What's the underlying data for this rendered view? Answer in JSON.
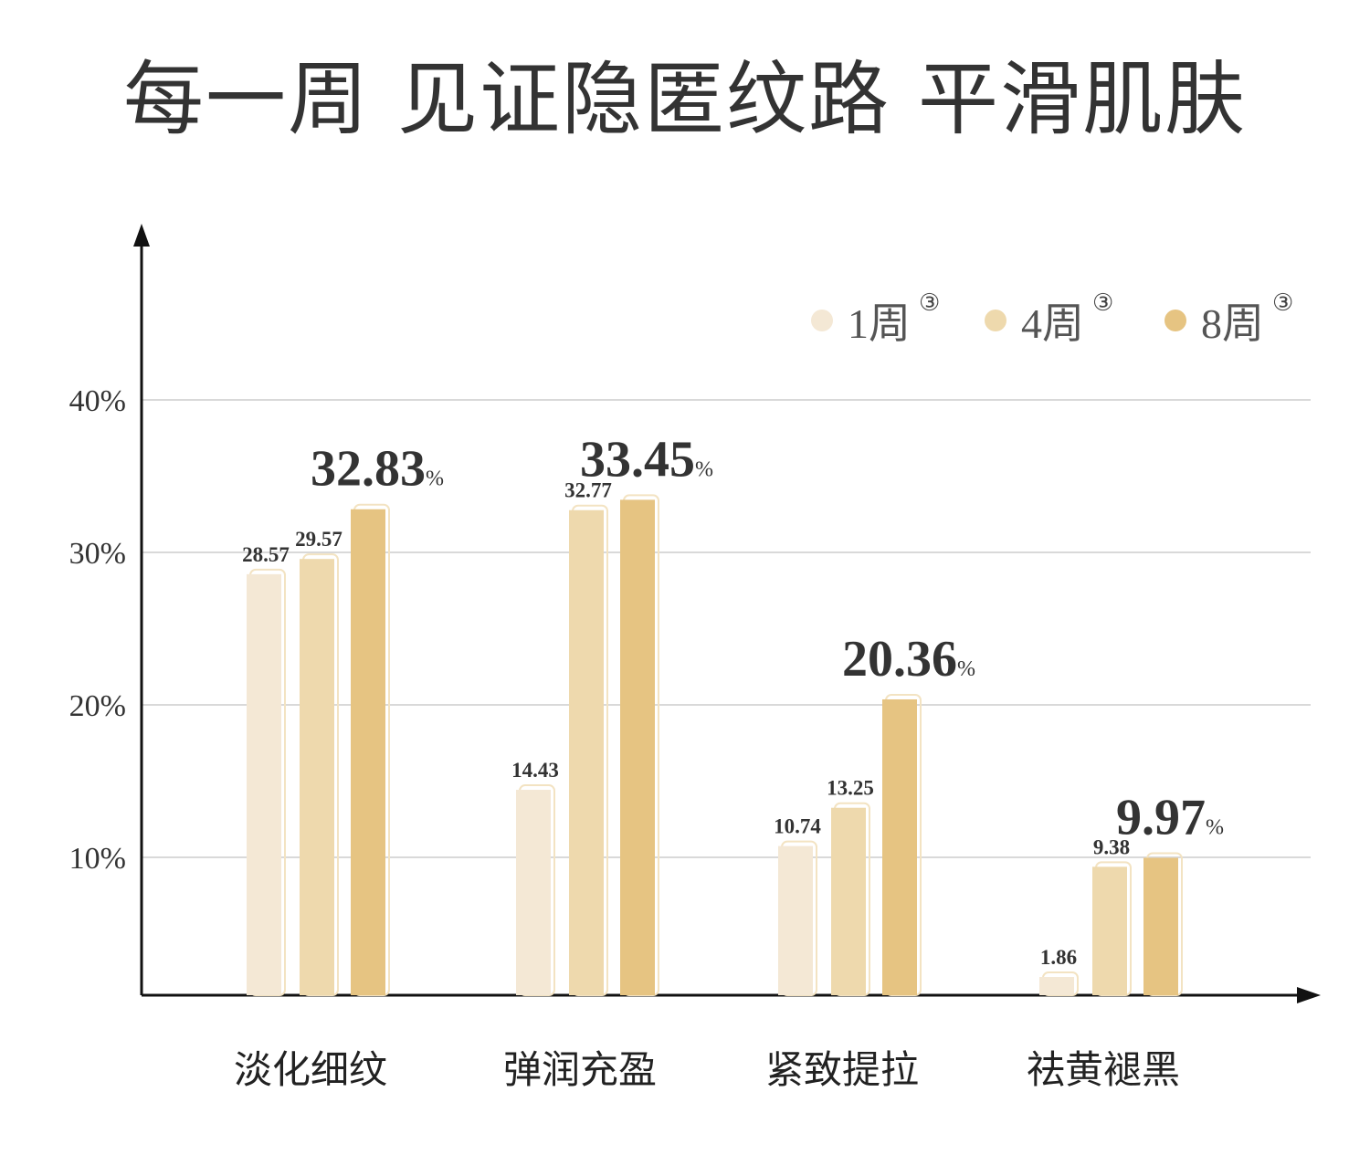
{
  "chart_data": {
    "type": "bar",
    "title": "每一周 见证隐匿纹路 平滑肌肤",
    "xlabel": "",
    "ylabel": "",
    "ylim": [
      0,
      45
    ],
    "yticks": [
      10,
      20,
      30,
      40
    ],
    "ytick_labels": [
      "10%",
      "20%",
      "30%",
      "40%"
    ],
    "grid": true,
    "legend_position": "top-right",
    "categories": [
      "淡化细纹",
      "弹润充盈",
      "紧致提拉",
      "祛黄褪黑"
    ],
    "series": [
      {
        "name": "1周",
        "superscript": "③",
        "color": "#f4e8d5",
        "values": [
          28.57,
          14.43,
          10.74,
          1.86
        ]
      },
      {
        "name": "4周",
        "superscript": "③",
        "color": "#eed9ad",
        "values": [
          29.57,
          32.77,
          13.25,
          9.38
        ]
      },
      {
        "name": "8周",
        "superscript": "③",
        "color": "#e6c482",
        "values": [
          32.83,
          33.45,
          20.36,
          9.97
        ]
      }
    ],
    "highlight_unit": "%"
  }
}
